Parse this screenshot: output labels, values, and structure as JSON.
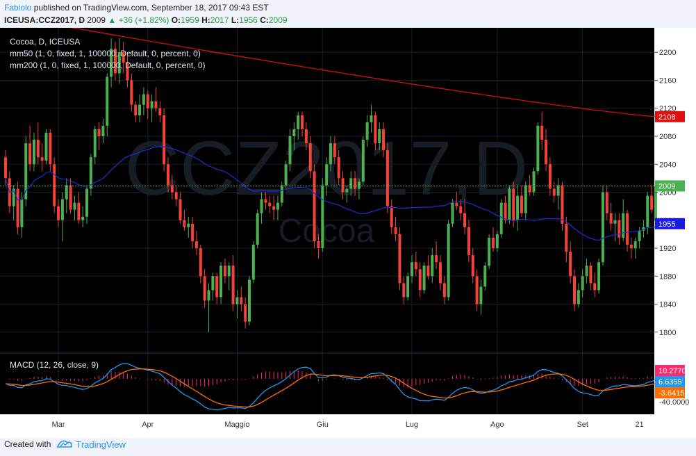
{
  "header": {
    "author": "Fabiolo",
    "published_text": "published on TradingView.com, September 18, 2017 09:43 EST",
    "symbol": "ICEUSA:CCZ2017, D",
    "last": "2009",
    "change": "+36 (+1.82%)",
    "o_label": "O:",
    "o": "1959",
    "h_label": "H:",
    "h": "2017",
    "l_label": "L:",
    "l": "1956",
    "c_label": "C:",
    "c": "2009"
  },
  "legend": {
    "line1": "Cocoa, D, ICEUSA",
    "line2": "mm50 (1, 0, fixed, 1, 100000, Default, 0, percent, 0)",
    "line3": "mm200 (1, 0, fixed, 1, 100000, Default, 0, percent, 0)"
  },
  "watermark": {
    "symbol": "CCZ2017,D",
    "name": "Cocoa"
  },
  "macd_legend": "MACD (12, 26, close, 9)",
  "footer": {
    "created_with": "Created with",
    "brand": "TradingView"
  },
  "colors": {
    "background": "#000000",
    "up": "#4caf50",
    "down": "#f44336",
    "ma50": "#1a2fd6",
    "ma200": "#e01010",
    "macd": "#2196f3",
    "signal": "#ff6d00",
    "hist": "#ff2a6d",
    "last_price_line": "#4caf50"
  },
  "chart_data": [
    {
      "type": "candlestick",
      "name": "price",
      "x_labels": [
        "Mar",
        "Apr",
        "Maggio",
        "Giu",
        "Lug",
        "Ago",
        "Set",
        "21"
      ],
      "y_ticks": [
        1800,
        1840,
        1880,
        1920,
        1960,
        2000,
        2040,
        2080,
        2120,
        2160,
        2200
      ],
      "ylim": [
        1770,
        2235
      ],
      "markers": {
        "ma200": "2108",
        "last": "2009",
        "ma50": "1955"
      },
      "candles": [
        [
          2050,
          2060,
          2010,
          2020
        ],
        [
          2020,
          2030,
          1970,
          1980
        ],
        [
          1980,
          2010,
          1960,
          2005
        ],
        [
          2005,
          2015,
          1940,
          1950
        ],
        [
          1950,
          2000,
          1935,
          1990
        ],
        [
          1990,
          2080,
          1980,
          2070
        ],
        [
          2070,
          2095,
          2030,
          2040
        ],
        [
          2040,
          2085,
          2030,
          2075
        ],
        [
          2075,
          2100,
          2040,
          2050
        ],
        [
          2050,
          2070,
          2030,
          2045
        ],
        [
          2045,
          2090,
          2040,
          2085
        ],
        [
          2085,
          2090,
          2030,
          2040
        ],
        [
          2040,
          2050,
          1970,
          1980
        ],
        [
          1980,
          1990,
          1950,
          1960
        ],
        [
          1960,
          2000,
          1930,
          1990
        ],
        [
          1990,
          2020,
          1970,
          2010
        ],
        [
          2010,
          2020,
          1970,
          1975
        ],
        [
          1975,
          1995,
          1960,
          1985
        ],
        [
          1985,
          2000,
          1955,
          1960
        ],
        [
          1960,
          1980,
          1950,
          1965
        ],
        [
          1965,
          2010,
          1955,
          2005
        ],
        [
          2005,
          2055,
          1995,
          2050
        ],
        [
          2050,
          2095,
          2040,
          2090
        ],
        [
          2090,
          2100,
          2060,
          2080
        ],
        [
          2080,
          2105,
          2070,
          2095
        ],
        [
          2095,
          2170,
          2080,
          2165
        ],
        [
          2165,
          2220,
          2150,
          2205
        ],
        [
          2205,
          2215,
          2160,
          2170
        ],
        [
          2170,
          2220,
          2155,
          2200
        ],
        [
          2200,
          2215,
          2170,
          2185
        ],
        [
          2185,
          2195,
          2150,
          2160
        ],
        [
          2160,
          2170,
          2115,
          2125
        ],
        [
          2125,
          2130,
          2100,
          2110
        ],
        [
          2110,
          2140,
          2100,
          2125
        ],
        [
          2125,
          2150,
          2110,
          2140
        ],
        [
          2140,
          2145,
          2105,
          2120
        ],
        [
          2120,
          2140,
          2100,
          2130
        ],
        [
          2130,
          2150,
          2115,
          2120
        ],
        [
          2120,
          2130,
          2100,
          2110
        ],
        [
          2110,
          2120,
          2030,
          2040
        ],
        [
          2040,
          2050,
          2000,
          2010
        ],
        [
          2010,
          2025,
          1990,
          2000
        ],
        [
          2000,
          2010,
          1980,
          1990
        ],
        [
          1990,
          2000,
          1955,
          1960
        ],
        [
          1960,
          1975,
          1945,
          1950
        ],
        [
          1950,
          1965,
          1935,
          1955
        ],
        [
          1955,
          1965,
          1920,
          1930
        ],
        [
          1930,
          1945,
          1910,
          1920
        ],
        [
          1920,
          1925,
          1870,
          1880
        ],
        [
          1880,
          1890,
          1835,
          1845
        ],
        [
          1845,
          1870,
          1800,
          1860
        ],
        [
          1860,
          1885,
          1845,
          1880
        ],
        [
          1880,
          1885,
          1840,
          1850
        ],
        [
          1850,
          1900,
          1840,
          1895
        ],
        [
          1895,
          1905,
          1870,
          1880
        ],
        [
          1880,
          1900,
          1860,
          1895
        ],
        [
          1895,
          1910,
          1830,
          1840
        ],
        [
          1840,
          1860,
          1820,
          1850
        ],
        [
          1850,
          1865,
          1830,
          1840
        ],
        [
          1840,
          1850,
          1805,
          1815
        ],
        [
          1815,
          1880,
          1810,
          1875
        ],
        [
          1875,
          1930,
          1870,
          1925
        ],
        [
          1925,
          1975,
          1920,
          1970
        ],
        [
          1970,
          2000,
          1955,
          1990
        ],
        [
          1990,
          2000,
          1975,
          1985
        ],
        [
          1985,
          1995,
          1970,
          1980
        ],
        [
          1980,
          1995,
          1960,
          1975
        ],
        [
          1975,
          1995,
          1960,
          1985
        ],
        [
          1985,
          2015,
          1980,
          2010
        ],
        [
          2010,
          2045,
          2005,
          2040
        ],
        [
          2040,
          2090,
          2030,
          2080
        ],
        [
          2080,
          2100,
          2060,
          2090
        ],
        [
          2090,
          2115,
          2075,
          2110
        ],
        [
          2110,
          2115,
          2080,
          2090
        ],
        [
          2090,
          2100,
          2060,
          2070
        ],
        [
          2070,
          2080,
          2020,
          2030
        ],
        [
          2030,
          2040,
          1920,
          1930
        ],
        [
          1930,
          1940,
          1905,
          1920
        ],
        [
          1920,
          2020,
          1915,
          2010
        ],
        [
          2010,
          2050,
          1995,
          2040
        ],
        [
          2040,
          2080,
          2030,
          2070
        ],
        [
          2070,
          2080,
          2040,
          2050
        ],
        [
          2050,
          2060,
          2010,
          2020
        ],
        [
          2020,
          2030,
          1990,
          2000
        ],
        [
          2000,
          2010,
          1985,
          2005
        ],
        [
          2005,
          2030,
          1995,
          2020
        ],
        [
          2020,
          2030,
          1995,
          2005
        ],
        [
          2005,
          2020,
          1990,
          2015
        ],
        [
          2015,
          2080,
          2010,
          2075
        ],
        [
          2075,
          2110,
          2065,
          2100
        ],
        [
          2100,
          2125,
          2085,
          2110
        ],
        [
          2110,
          2115,
          2060,
          2070
        ],
        [
          2070,
          2100,
          2060,
          2090
        ],
        [
          2090,
          2100,
          2050,
          2060
        ],
        [
          2060,
          2070,
          1970,
          1980
        ],
        [
          1980,
          1990,
          1940,
          1950
        ],
        [
          1950,
          1965,
          1930,
          1940
        ],
        [
          1940,
          1950,
          1860,
          1870
        ],
        [
          1870,
          1880,
          1840,
          1850
        ],
        [
          1850,
          1885,
          1845,
          1880
        ],
        [
          1880,
          1910,
          1870,
          1900
        ],
        [
          1900,
          1915,
          1880,
          1890
        ],
        [
          1890,
          1900,
          1850,
          1860
        ],
        [
          1860,
          1900,
          1855,
          1895
        ],
        [
          1895,
          1910,
          1875,
          1880
        ],
        [
          1880,
          1920,
          1870,
          1910
        ],
        [
          1910,
          1930,
          1890,
          1900
        ],
        [
          1900,
          1910,
          1860,
          1870
        ],
        [
          1870,
          1880,
          1840,
          1850
        ],
        [
          1850,
          1960,
          1845,
          1955
        ],
        [
          1955,
          1990,
          1950,
          1985
        ],
        [
          1985,
          2000,
          1975,
          1980
        ],
        [
          1980,
          1990,
          1960,
          1970
        ],
        [
          1970,
          1990,
          1940,
          1950
        ],
        [
          1950,
          1960,
          1900,
          1910
        ],
        [
          1910,
          1920,
          1870,
          1880
        ],
        [
          1880,
          1890,
          1830,
          1840
        ],
        [
          1840,
          1875,
          1825,
          1865
        ],
        [
          1865,
          1900,
          1860,
          1895
        ],
        [
          1895,
          1940,
          1890,
          1935
        ],
        [
          1935,
          1950,
          1915,
          1920
        ],
        [
          1920,
          1945,
          1915,
          1940
        ],
        [
          1940,
          1990,
          1935,
          1985
        ],
        [
          1985,
          1995,
          1955,
          1960
        ],
        [
          1960,
          2010,
          1955,
          2005
        ],
        [
          2005,
          2015,
          1950,
          1960
        ],
        [
          1960,
          2010,
          1945,
          1995
        ],
        [
          1995,
          2010,
          1965,
          1970
        ],
        [
          1970,
          2015,
          1960,
          2010
        ],
        [
          2010,
          2025,
          1995,
          2000
        ],
        [
          2000,
          2035,
          1995,
          2030
        ],
        [
          2030,
          2100,
          2025,
          2095
        ],
        [
          2095,
          2115,
          2060,
          2075
        ],
        [
          2075,
          2090,
          2030,
          2040
        ],
        [
          2040,
          2050,
          1995,
          2005
        ],
        [
          2005,
          2015,
          1985,
          1995
        ],
        [
          1995,
          2020,
          1975,
          2010
        ],
        [
          2010,
          2015,
          1945,
          1955
        ],
        [
          1955,
          1965,
          1900,
          1915
        ],
        [
          1915,
          1930,
          1870,
          1880
        ],
        [
          1880,
          1890,
          1830,
          1840
        ],
        [
          1840,
          1870,
          1835,
          1860
        ],
        [
          1860,
          1890,
          1850,
          1880
        ],
        [
          1880,
          1905,
          1870,
          1895
        ],
        [
          1895,
          1900,
          1860,
          1870
        ],
        [
          1870,
          1885,
          1850,
          1860
        ],
        [
          1860,
          1905,
          1855,
          1900
        ],
        [
          1900,
          2010,
          1895,
          2000
        ],
        [
          2000,
          2010,
          1960,
          1970
        ],
        [
          1970,
          1985,
          1945,
          1955
        ],
        [
          1955,
          1970,
          1930,
          1960
        ],
        [
          1960,
          1970,
          1925,
          1935
        ],
        [
          1935,
          1990,
          1930,
          1970
        ],
        [
          1970,
          1975,
          1915,
          1925
        ],
        [
          1925,
          1935,
          1905,
          1920
        ],
        [
          1920,
          1935,
          1905,
          1930
        ],
        [
          1930,
          1950,
          1920,
          1945
        ],
        [
          1945,
          1960,
          1935,
          1950
        ],
        [
          1950,
          2000,
          1940,
          1995
        ],
        [
          1995,
          2010,
          1970,
          1975
        ],
        [
          1959,
          2017,
          1956,
          2009
        ]
      ]
    },
    {
      "type": "macd",
      "name": "MACD (12, 26, close, 9)",
      "y_tick_labels": [
        "-40.0000"
      ],
      "markers": {
        "histogram": "10.2770",
        "macd": "6.6355",
        "signal": "-3.6415"
      }
    }
  ]
}
